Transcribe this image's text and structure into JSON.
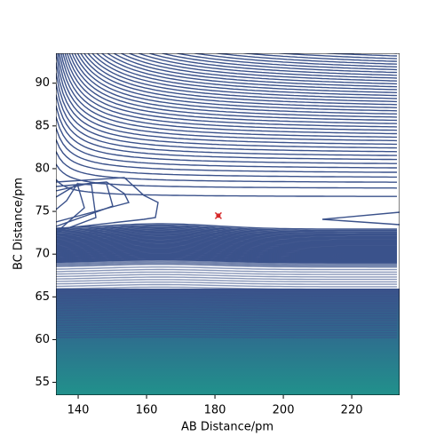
{
  "chart_data": {
    "type": "contour",
    "x_label": "AB Distance/pm",
    "y_label": "BC Distance/pm",
    "xlim": [
      133.5,
      234
    ],
    "ylim": [
      53.5,
      93.5
    ],
    "xticks": [
      140,
      160,
      180,
      200,
      220
    ],
    "yticks": [
      55,
      60,
      65,
      70,
      75,
      80,
      85,
      90
    ],
    "x": [
      181
    ],
    "y": [
      74.5
    ],
    "color": "#d62728"
  }
}
